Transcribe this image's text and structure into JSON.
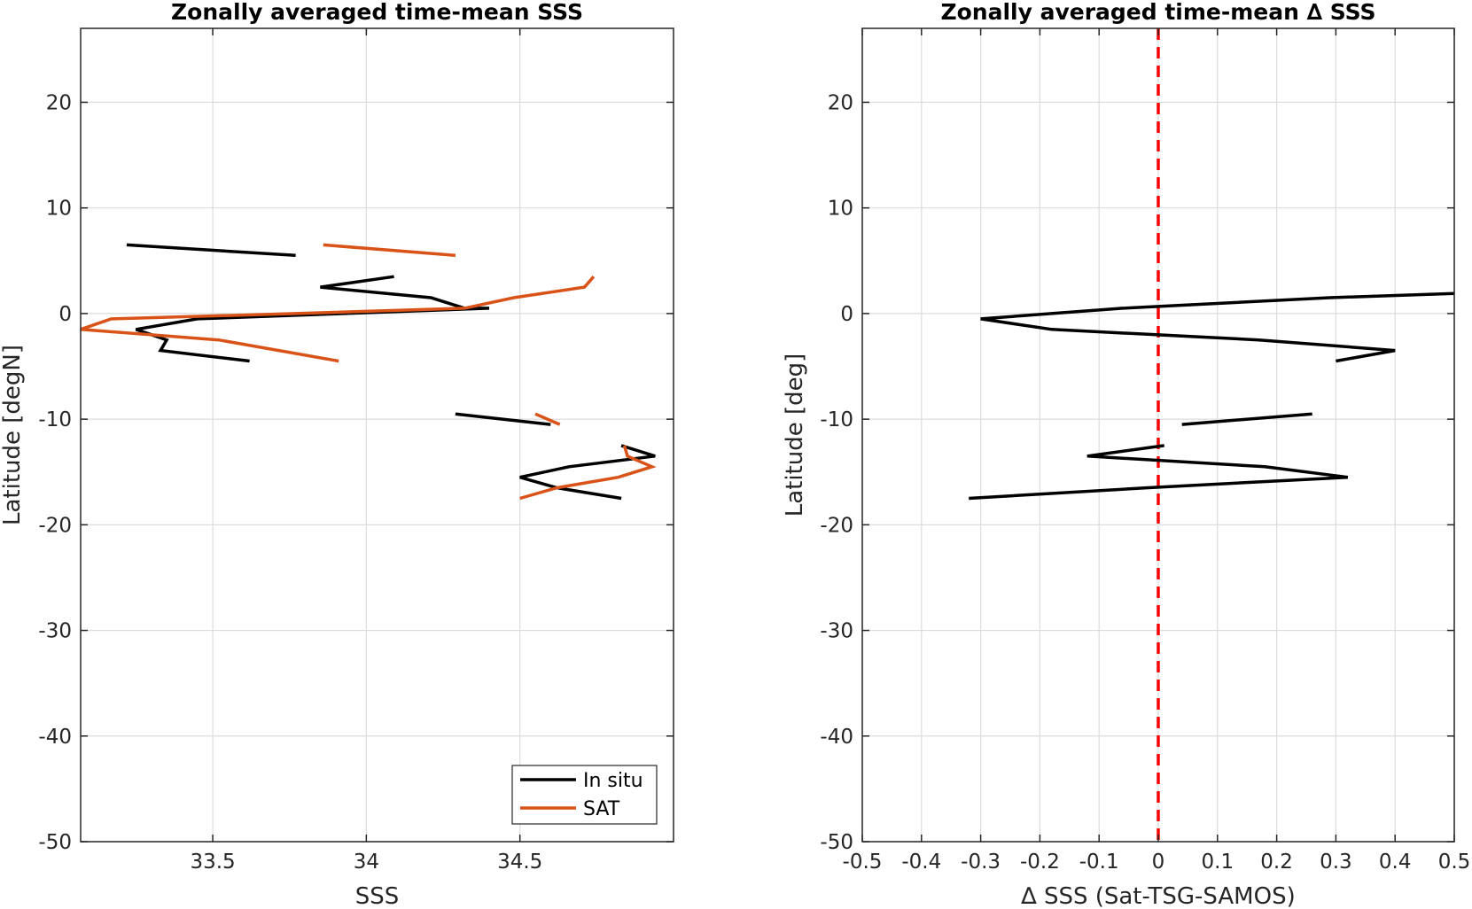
{
  "chart_data": [
    {
      "type": "line",
      "title": "Zonally averaged time-mean SSS",
      "xlabel": "SSS",
      "ylabel": "Latitude [degN]",
      "xlim": [
        33.07,
        35.0
      ],
      "ylim": [
        -50,
        27
      ],
      "xticks": [
        33.5,
        34,
        34.5
      ],
      "xtick_labels": [
        "33.5",
        "34",
        "34.5"
      ],
      "yticks": [
        20,
        10,
        0,
        -10,
        -20,
        -30,
        -40,
        -50
      ],
      "ytick_labels": [
        "20",
        "10",
        "0",
        "-10",
        "-20",
        "-30",
        "-40",
        "-50"
      ],
      "grid": true,
      "legend_position": "bottom-right",
      "series": [
        {
          "name": "In situ",
          "color": "#000000",
          "segments": [
            [
              [
                33.22,
                6.5
              ],
              [
                33.77,
                5.5
              ]
            ],
            [
              [
                34.09,
                3.5
              ],
              [
                33.85,
                2.5
              ],
              [
                34.21,
                1.5
              ],
              [
                34.32,
                0.5
              ],
              [
                34.4,
                0.5
              ],
              [
                33.45,
                -0.5
              ],
              [
                33.25,
                -1.5
              ],
              [
                33.35,
                -2.5
              ],
              [
                33.33,
                -3.5
              ],
              [
                33.62,
                -4.5
              ]
            ],
            [
              [
                34.29,
                -9.5
              ],
              [
                34.6,
                -10.5
              ]
            ],
            [
              [
                34.83,
                -12.5
              ],
              [
                34.94,
                -13.5
              ],
              [
                34.66,
                -14.5
              ],
              [
                34.5,
                -15.5
              ],
              [
                34.62,
                -16.5
              ],
              [
                34.83,
                -17.5
              ]
            ]
          ]
        },
        {
          "name": "SAT",
          "color": "#d95319",
          "segments": [
            [
              [
                33.86,
                6.5
              ],
              [
                34.29,
                5.5
              ]
            ],
            [
              [
                34.74,
                3.5
              ],
              [
                34.71,
                2.5
              ],
              [
                34.48,
                1.5
              ],
              [
                34.32,
                0.5
              ],
              [
                33.77,
                0.0
              ],
              [
                33.17,
                -0.5
              ],
              [
                33.07,
                -1.5
              ],
              [
                33.52,
                -2.5
              ],
              [
                33.91,
                -4.5
              ]
            ],
            [
              [
                34.55,
                -9.5
              ],
              [
                34.63,
                -10.5
              ]
            ],
            [
              [
                34.84,
                -12.5
              ],
              [
                34.85,
                -13.5
              ],
              [
                34.93,
                -14.5
              ],
              [
                34.82,
                -15.5
              ],
              [
                34.62,
                -16.5
              ],
              [
                34.5,
                -17.5
              ]
            ]
          ]
        }
      ]
    },
    {
      "type": "line",
      "title": "Zonally averaged time-mean ∆ SSS",
      "xlabel": "∆ SSS (Sat-TSG-SAMOS)",
      "ylabel": "Latitude [deg]",
      "xlim": [
        -0.5,
        0.5
      ],
      "ylim": [
        -50,
        27
      ],
      "xticks": [
        -0.5,
        -0.4,
        -0.3,
        -0.2,
        -0.1,
        0,
        0.1,
        0.2,
        0.3,
        0.4,
        0.5
      ],
      "xtick_labels": [
        "-0.5",
        "-0.4",
        "-0.3",
        "-0.2",
        "-0.1",
        "0",
        "0.1",
        "0.2",
        "0.3",
        "0.4",
        "0.5"
      ],
      "yticks": [
        20,
        10,
        0,
        -10,
        -20,
        -30,
        -40,
        -50
      ],
      "ytick_labels": [
        "20",
        "10",
        "0",
        "-10",
        "-20",
        "-30",
        "-40",
        "-50"
      ],
      "grid": true,
      "reference_line": {
        "x": 0,
        "color": "#ff0000",
        "style": "dashed"
      },
      "series": [
        {
          "name": "",
          "color": "#000000",
          "segments": [
            [
              [
                0.5,
                1.9
              ],
              [
                0.29,
                1.5
              ],
              [
                -0.06,
                0.5
              ],
              [
                -0.3,
                -0.5
              ],
              [
                -0.18,
                -1.5
              ],
              [
                0.17,
                -2.5
              ],
              [
                0.4,
                -3.5
              ],
              [
                0.3,
                -4.5
              ]
            ],
            [
              [
                0.26,
                -9.5
              ],
              [
                0.04,
                -10.5
              ]
            ],
            [
              [
                0.01,
                -12.5
              ],
              [
                -0.12,
                -13.5
              ],
              [
                0.18,
                -14.5
              ],
              [
                0.32,
                -15.5
              ],
              [
                -0.02,
                -16.5
              ],
              [
                -0.32,
                -17.5
              ]
            ]
          ]
        }
      ]
    }
  ]
}
